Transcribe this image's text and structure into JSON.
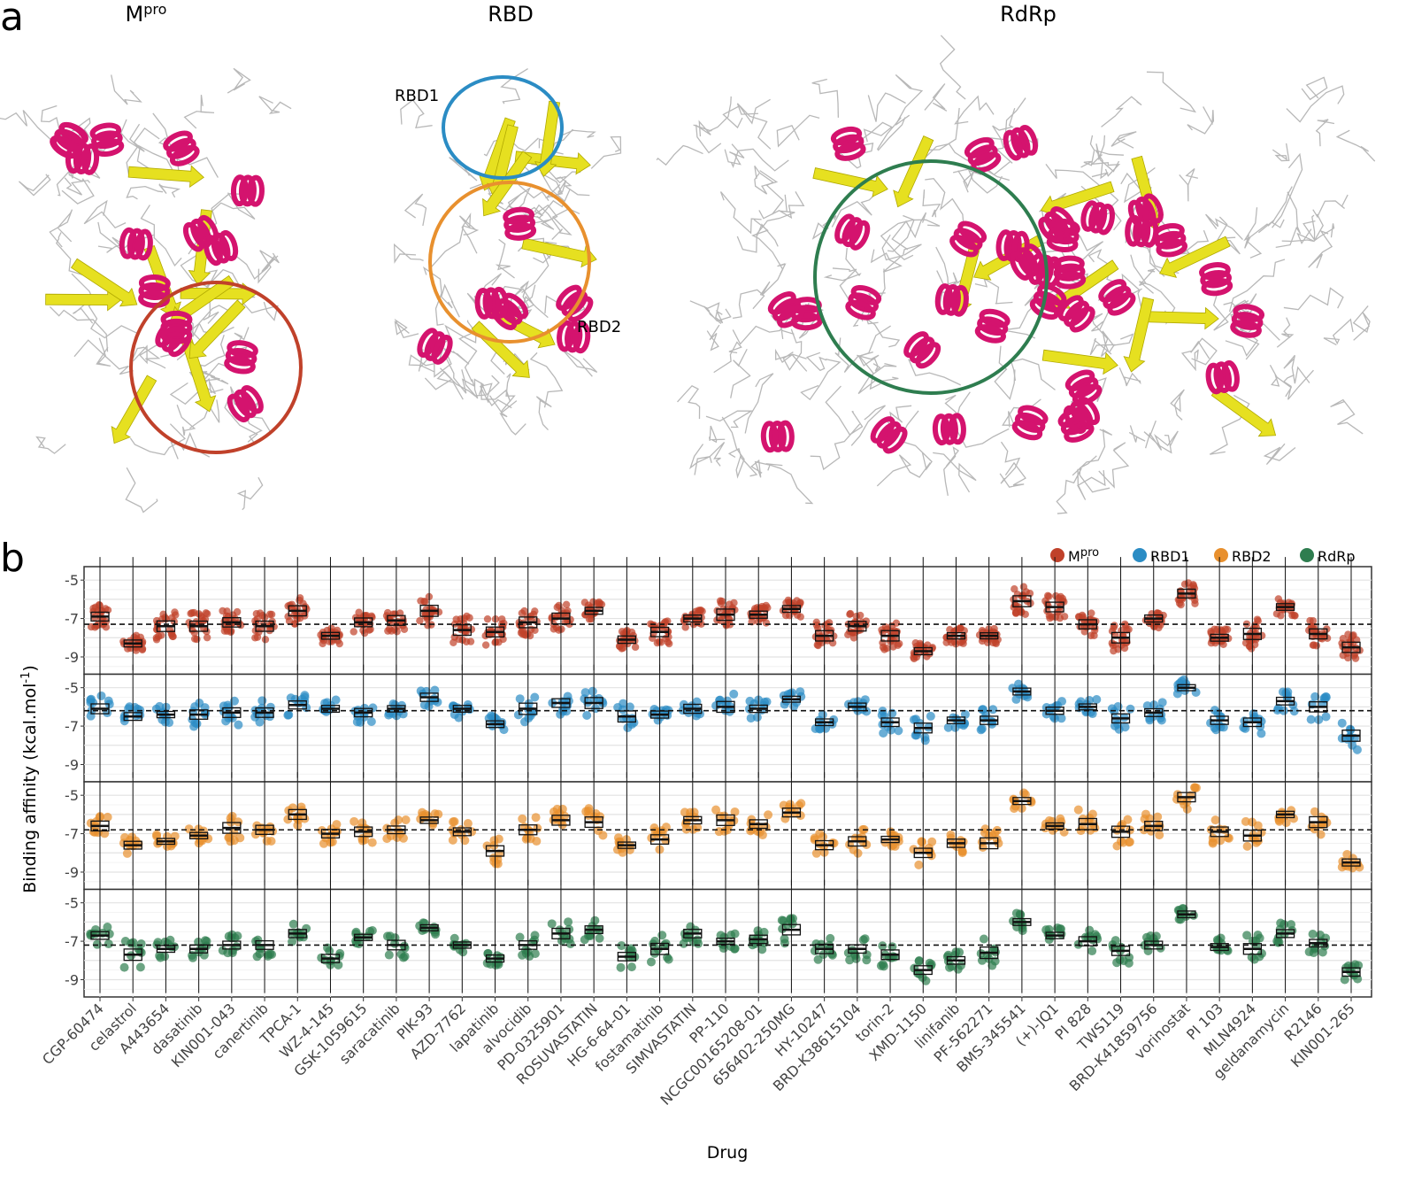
{
  "panel_a": {
    "letter": "a",
    "structures": [
      {
        "title": "M",
        "title_sup": "pro",
        "site_color": "#c0412a"
      },
      {
        "title": "RBD",
        "title_sup": "",
        "sites": [
          {
            "label": "RBD1",
            "color": "#2b8cc4"
          },
          {
            "label": "RBD2",
            "color": "#e8902e"
          }
        ]
      },
      {
        "title": "RdRp",
        "title_sup": "",
        "site_color": "#2e7d4f"
      }
    ],
    "colors": {
      "helix": "#d4136e",
      "sheet": "#e6e020",
      "coil": "#b8b8b8"
    }
  },
  "panel_b": {
    "letter": "b"
  },
  "chart_data": {
    "type": "box",
    "xlabel": "Drug",
    "ylabel": "Binding affinity (kcal.mol",
    "ylabel_sup": "-1",
    "ylabel_end": ")",
    "yticks": [
      -5,
      -7,
      -9
    ],
    "ylim": [
      -4.3,
      -9.9
    ],
    "grid": true,
    "legend_position": "top-right",
    "categories": [
      "CGP-60474",
      "celastrol",
      "A443654",
      "dasatinib",
      "KIN001-043",
      "canertinib",
      "TPCA-1",
      "WZ-4-145",
      "GSK-1059615",
      "saracatinib",
      "PIK-93",
      "AZD-7762",
      "lapatinib",
      "alvocidib",
      "PD-0325901",
      "ROSUVASTATIN",
      "HG-6-64-01",
      "fostamatinib",
      "SIMVASTATIN",
      "PP-110",
      "NCGC00165208-01",
      "656402-250MG",
      "HY-10247",
      "BRD-K38615104",
      "torin-2",
      "XMD-1150",
      "linifanib",
      "PF-562271",
      "BMS-345541",
      "(+)-JQ1",
      "PI 828",
      "TWS119",
      "BRD-K41859756",
      "vorinostat",
      "PI 103",
      "MLN4924",
      "geldanamycin",
      "R2146",
      "KIN001-265"
    ],
    "series": [
      {
        "name": "M",
        "name_sup": "pro",
        "color": "#c0412a",
        "reference_line": -7.3,
        "medians": [
          -6.9,
          -8.3,
          -7.4,
          -7.4,
          -7.2,
          -7.4,
          -6.6,
          -7.9,
          -7.2,
          -7.1,
          -6.6,
          -7.6,
          -7.7,
          -7.2,
          -7.0,
          -6.6,
          -8.1,
          -7.7,
          -7.0,
          -6.8,
          -6.8,
          -6.5,
          -7.9,
          -7.4,
          -7.9,
          -8.7,
          -7.9,
          -7.9,
          -6.1,
          -6.4,
          -7.3,
          -8.0,
          -7.0,
          -5.7,
          -8.0,
          -7.8,
          -6.4,
          -7.8,
          -8.5
        ]
      },
      {
        "name": "RBD1",
        "name_sup": "",
        "color": "#2b8cc4",
        "reference_line": -6.2,
        "medians": [
          -6.1,
          -6.5,
          -6.4,
          -6.4,
          -6.3,
          -6.3,
          -5.9,
          -6.1,
          -6.3,
          -6.1,
          -5.5,
          -6.1,
          -6.9,
          -6.1,
          -5.8,
          -5.8,
          -6.5,
          -6.4,
          -6.1,
          -6.0,
          -6.1,
          -5.6,
          -6.8,
          -6.0,
          -6.8,
          -7.1,
          -6.7,
          -6.7,
          -5.2,
          -6.2,
          -6.0,
          -6.6,
          -6.3,
          -5.0,
          -6.7,
          -6.8,
          -5.7,
          -6.0,
          -7.5
        ]
      },
      {
        "name": "RBD2",
        "name_sup": "",
        "color": "#e8902e",
        "reference_line": -6.8,
        "medians": [
          -6.6,
          -7.6,
          -7.4,
          -7.1,
          -6.7,
          -6.8,
          -6.0,
          -7.0,
          -6.9,
          -6.8,
          -6.3,
          -6.9,
          -7.9,
          -6.8,
          -6.3,
          -6.4,
          -7.6,
          -7.3,
          -6.3,
          -6.3,
          -6.5,
          -5.9,
          -7.6,
          -7.4,
          -7.3,
          -8.0,
          -7.5,
          -7.5,
          -5.3,
          -6.6,
          -6.5,
          -6.9,
          -6.6,
          -5.1,
          -6.9,
          -7.1,
          -6.0,
          -6.4,
          -8.5
        ]
      },
      {
        "name": "RdRp",
        "name_sup": "",
        "color": "#2e7d4f",
        "reference_line": -7.2,
        "medians": [
          -6.7,
          -7.7,
          -7.4,
          -7.4,
          -7.2,
          -7.2,
          -6.6,
          -7.9,
          -6.8,
          -7.2,
          -6.3,
          -7.2,
          -7.9,
          -7.2,
          -6.6,
          -6.4,
          -7.8,
          -7.4,
          -6.6,
          -7.0,
          -6.9,
          -6.4,
          -7.4,
          -7.4,
          -7.7,
          -8.5,
          -8.0,
          -7.6,
          -6.0,
          -6.7,
          -7.0,
          -7.5,
          -7.2,
          -5.6,
          -7.3,
          -7.4,
          -6.6,
          -7.1,
          -8.6
        ]
      }
    ]
  }
}
